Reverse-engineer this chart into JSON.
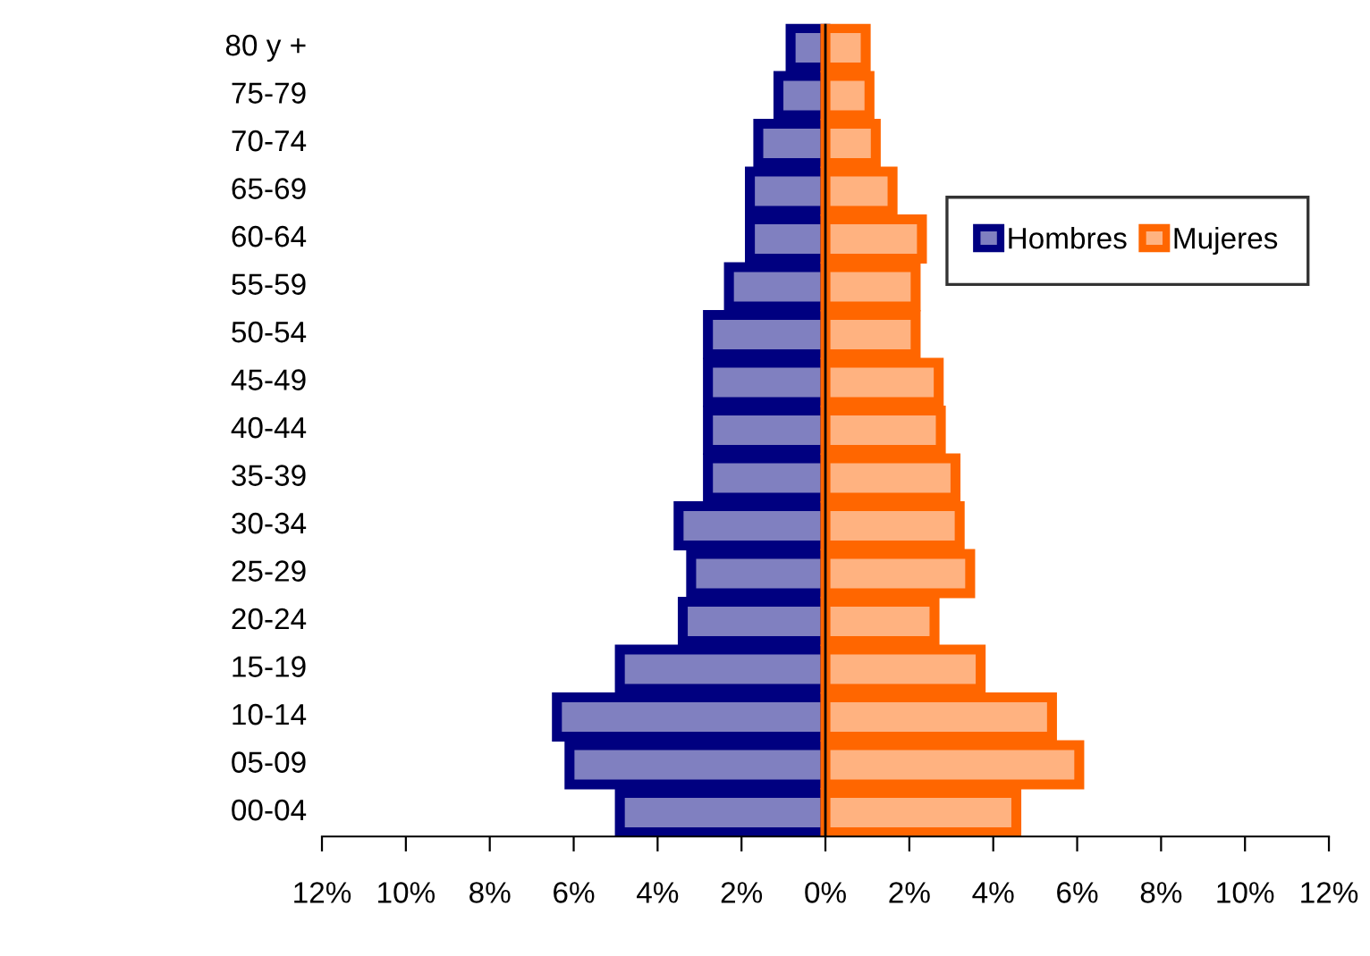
{
  "chart_data": {
    "type": "bar",
    "orientation": "horizontal",
    "stacked": true,
    "categories": [
      "80 y +",
      "75-79",
      "70-74",
      "65-69",
      "60-64",
      "55-59",
      "50-54",
      "45-49",
      "40-44",
      "35-39",
      "30-34",
      "25-29",
      "20-24",
      "15-19",
      "10-14",
      "05-09",
      "00-04"
    ],
    "series": [
      {
        "name": "Hombres",
        "color": "#000080",
        "values": [
          -0.83,
          -1.12,
          -1.6,
          -1.8,
          -1.8,
          -2.3,
          -2.8,
          -2.8,
          -2.8,
          -2.8,
          -3.5,
          -3.2,
          -3.4,
          -4.9,
          -6.4,
          -6.1,
          -4.9
        ]
      },
      {
        "name": "Mujeres",
        "color": "#ff6600",
        "values": [
          0.96,
          1.05,
          1.2,
          1.6,
          2.3,
          2.15,
          2.15,
          2.7,
          2.75,
          3.1,
          3.2,
          3.45,
          2.6,
          3.7,
          5.4,
          6.05,
          4.55
        ]
      }
    ],
    "xlim": [
      -12,
      12
    ],
    "xticks": [
      {
        "value": -12,
        "label": "12%"
      },
      {
        "value": -10,
        "label": "10%"
      },
      {
        "value": -8,
        "label": "8%"
      },
      {
        "value": -6,
        "label": "6%"
      },
      {
        "value": -4,
        "label": "4%"
      },
      {
        "value": -2,
        "label": "2%"
      },
      {
        "value": 0,
        "label": "0%"
      },
      {
        "value": 2,
        "label": "2%"
      },
      {
        "value": 4,
        "label": "4%"
      },
      {
        "value": 6,
        "label": "6%"
      },
      {
        "value": 8,
        "label": "8%"
      },
      {
        "value": 10,
        "label": "10%"
      },
      {
        "value": 12,
        "label": "12%"
      }
    ],
    "grid": false,
    "ref_lines": [
      {
        "axis": "x",
        "value": 0,
        "color": "#000000"
      }
    ],
    "legend": "top right"
  }
}
